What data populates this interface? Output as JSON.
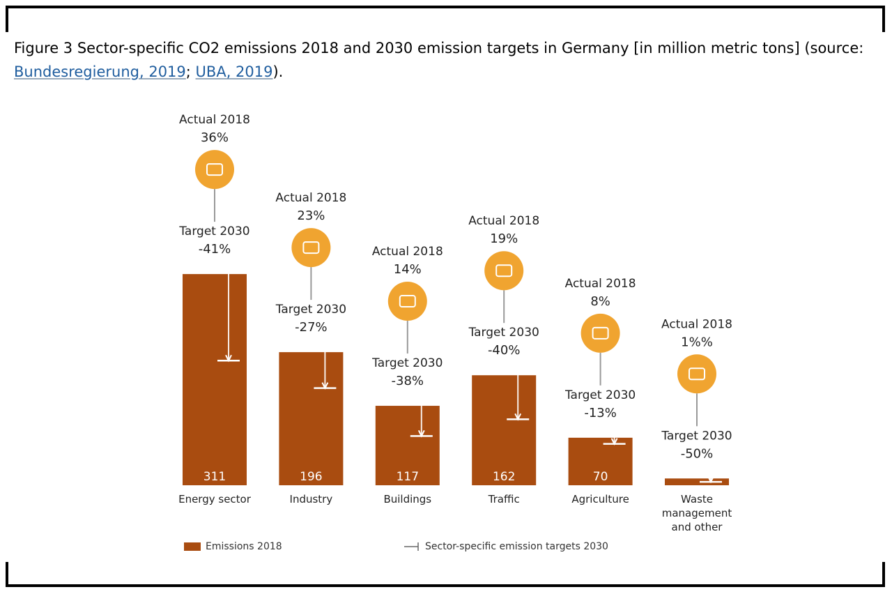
{
  "chart_data": {
    "type": "bar",
    "title_parts": [
      "Figure 3 Sector-specific CO2 emissions 2018 and 2030 emission targets in Germany [in million metric tons] (source: ",
      "Bundesregierung, 2019",
      "; ",
      "UBA, 2019",
      ")."
    ],
    "categories": [
      "Energy sector",
      "Industry",
      "Buildings",
      "Traffic",
      "Agriculture",
      "Waste management and other"
    ],
    "values": [
      311,
      196,
      117,
      162,
      70,
      10
    ],
    "value_labels": [
      "311",
      "196",
      "117",
      "162",
      "70",
      null
    ],
    "color": "#a94c10",
    "actual_label": "Actual 2018",
    "target_label": "Target 2030",
    "shares": [
      36,
      23,
      14,
      19,
      8,
      1
    ],
    "share_labels": [
      "36%",
      "23%",
      "14%",
      "19%",
      "8%",
      "1%%"
    ],
    "targets": [
      -41,
      -27,
      -38,
      -40,
      -13,
      -50
    ],
    "target_labels": [
      "-41%",
      "-27%",
      "-38%",
      "-40%",
      "-13%",
      "-50%"
    ],
    "icon_color": "#f0a430",
    "legend": [
      "Emissions 2018",
      "Sector-specific emission targets 2030"
    ]
  }
}
